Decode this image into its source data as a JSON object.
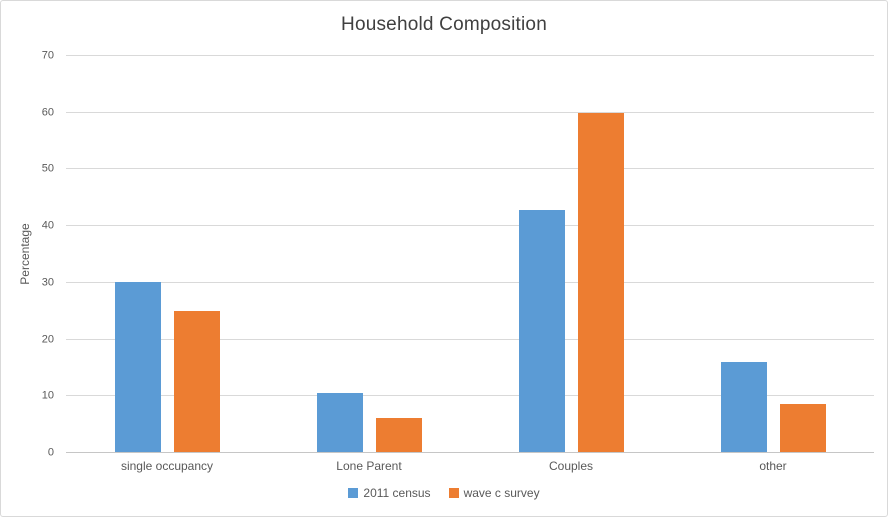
{
  "chart_data": {
    "type": "bar",
    "title": "Household Composition",
    "xlabel": "",
    "ylabel": "Percentage",
    "categories": [
      "single occupancy",
      "Lone Parent",
      "Couples",
      "other"
    ],
    "series": [
      {
        "name": "2011 census",
        "color": "#5B9BD5",
        "values": [
          30.2,
          10.6,
          42.9,
          16.1
        ]
      },
      {
        "name": "wave c survey",
        "color": "#ED7D31",
        "values": [
          25.1,
          6.2,
          59.9,
          8.6
        ]
      }
    ],
    "ylim": [
      0,
      70
    ],
    "ytick_step": 10,
    "grid": "horizontal",
    "legend_position": "bottom-center"
  },
  "colors": {
    "background": "#FFFFFF",
    "border": "#D9D9D9",
    "gridline": "#D9D9D9",
    "axis_line": "#C6C6C6",
    "title_text": "#404040",
    "axis_text": "#595959"
  }
}
